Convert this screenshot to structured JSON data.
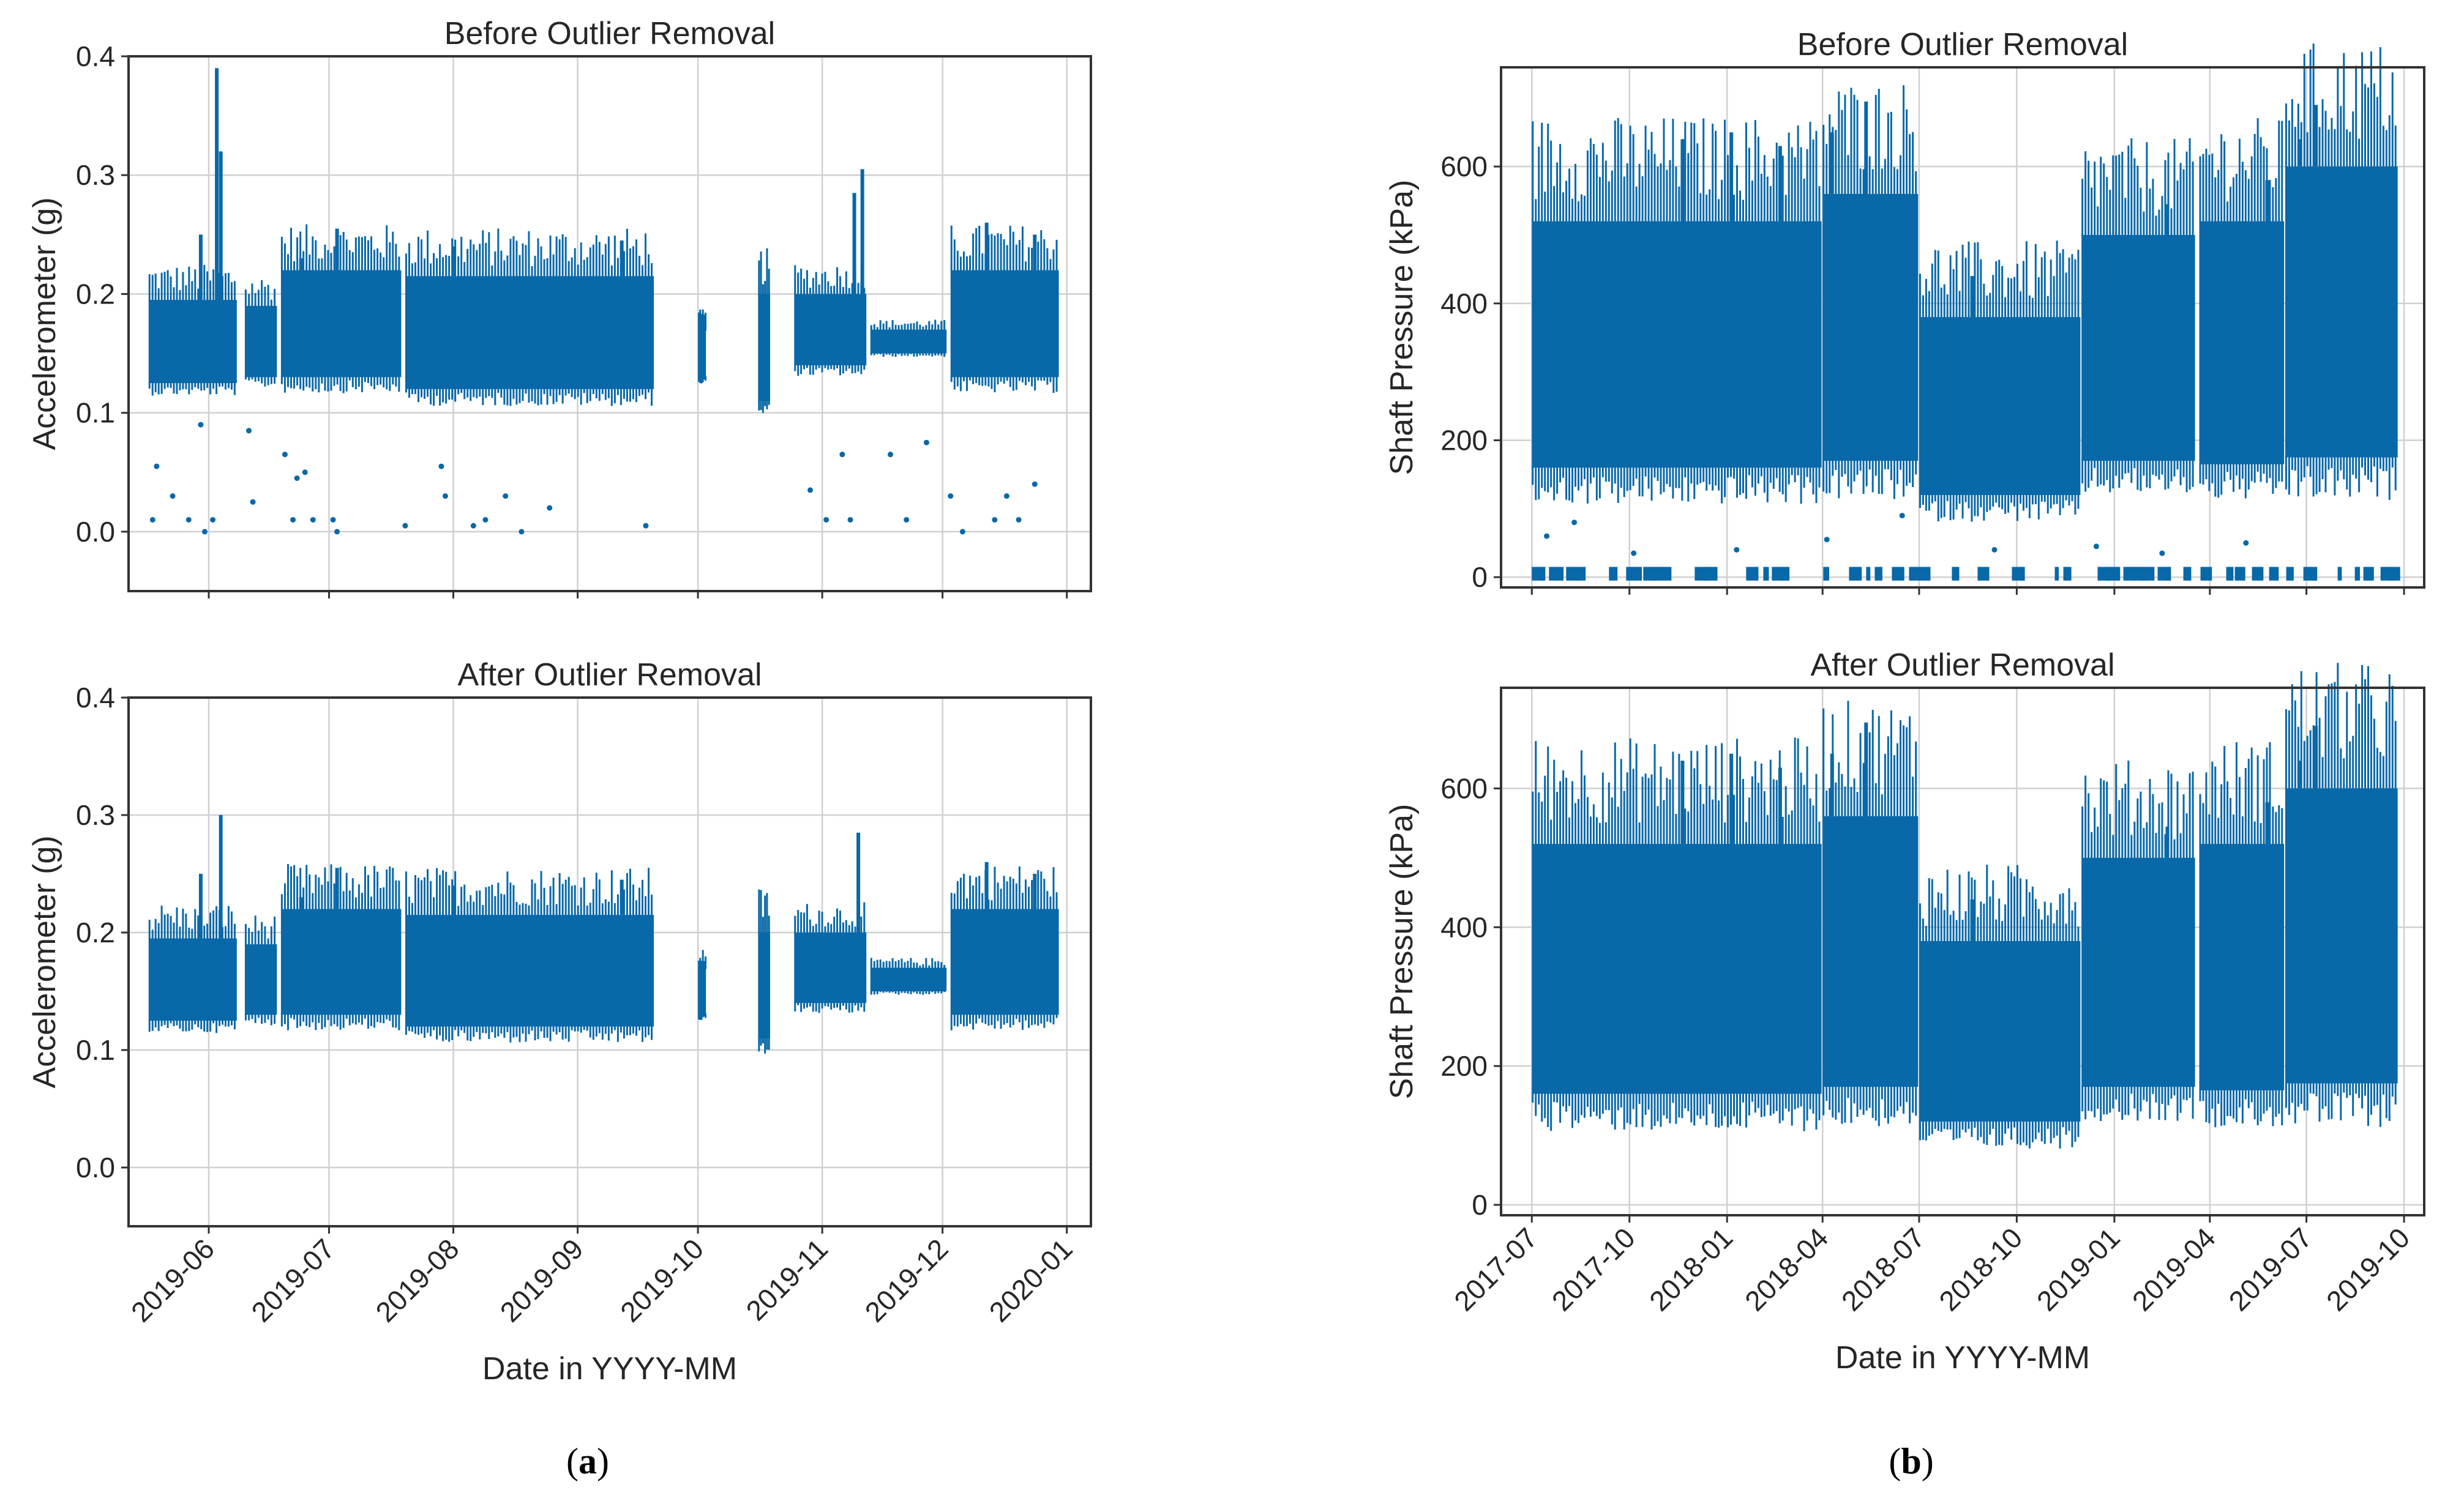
{
  "colors": {
    "marker": "#0868a8",
    "grid": "#d0d0d0",
    "frame": "#333333",
    "text": "#262626"
  },
  "captions": {
    "a": "a",
    "b": "b"
  },
  "chart_data": [
    {
      "id": "a_top",
      "type": "scatter",
      "title": "Before Outlier Removal",
      "xlabel": "",
      "ylabel": "Accelerometer (g)",
      "ylim": [
        -0.05,
        0.4
      ],
      "yticks": [
        "0.0",
        "0.1",
        "0.2",
        "0.3",
        "0.4"
      ],
      "ytick_values": [
        0.0,
        0.1,
        0.2,
        0.3,
        0.4
      ],
      "xlim": [
        "2019-05-12",
        "2020-01-07"
      ],
      "xticks": [
        "2019-06",
        "2019-07",
        "2019-08",
        "2019-09",
        "2019-10",
        "2019-11",
        "2019-12",
        "2020-01"
      ],
      "xtick_labels_shown": false,
      "segments": [
        {
          "start": "2019-05-17",
          "end": "2019-06-08",
          "low": 0.125,
          "high": 0.195,
          "spikes": [
            [
              "2019-06-03",
              0.39
            ],
            [
              "2019-06-04",
              0.32
            ],
            [
              "2019-05-30",
              0.25
            ]
          ]
        },
        {
          "start": "2019-06-10",
          "end": "2019-06-18",
          "low": 0.13,
          "high": 0.19
        },
        {
          "start": "2019-06-19",
          "end": "2019-07-19",
          "low": 0.13,
          "high": 0.22,
          "spikes": [
            [
              "2019-07-03",
              0.255
            ],
            [
              "2019-06-24",
              0.23
            ]
          ]
        },
        {
          "start": "2019-07-20",
          "end": "2019-09-20",
          "low": 0.12,
          "high": 0.215,
          "spikes": [
            [
              "2019-08-01",
              0.24
            ],
            [
              "2019-09-12",
              0.245
            ]
          ]
        },
        {
          "start": "2019-10-01",
          "end": "2019-10-03",
          "low": 0.13,
          "high": 0.17
        },
        {
          "start": "2019-10-16",
          "end": "2019-10-19",
          "low": 0.11,
          "high": 0.2
        },
        {
          "start": "2019-10-25",
          "end": "2019-11-12",
          "low": 0.14,
          "high": 0.2,
          "spikes": [
            [
              "2019-11-11",
              0.305
            ],
            [
              "2019-11-09",
              0.285
            ]
          ]
        },
        {
          "start": "2019-11-13",
          "end": "2019-12-02",
          "low": 0.15,
          "high": 0.17
        },
        {
          "start": "2019-12-03",
          "end": "2019-12-30",
          "low": 0.13,
          "high": 0.22,
          "spikes": [
            [
              "2019-12-12",
              0.26
            ],
            [
              "2019-12-24",
              0.25
            ]
          ]
        }
      ],
      "outliers": [
        [
          "2019-05-18",
          0.01
        ],
        [
          "2019-05-19",
          0.055
        ],
        [
          "2019-05-23",
          0.03
        ],
        [
          "2019-05-27",
          0.01
        ],
        [
          "2019-05-30",
          0.09
        ],
        [
          "2019-05-31",
          0.0
        ],
        [
          "2019-06-02",
          0.01
        ],
        [
          "2019-06-11",
          0.085
        ],
        [
          "2019-06-12",
          0.025
        ],
        [
          "2019-06-20",
          0.065
        ],
        [
          "2019-06-22",
          0.01
        ],
        [
          "2019-06-23",
          0.045
        ],
        [
          "2019-06-25",
          0.05
        ],
        [
          "2019-06-27",
          0.01
        ],
        [
          "2019-07-02",
          0.01
        ],
        [
          "2019-07-03",
          0.0
        ],
        [
          "2019-07-20",
          0.005
        ],
        [
          "2019-07-29",
          0.055
        ],
        [
          "2019-07-30",
          0.03
        ],
        [
          "2019-08-06",
          0.005
        ],
        [
          "2019-08-09",
          0.01
        ],
        [
          "2019-08-14",
          0.03
        ],
        [
          "2019-08-18",
          0.0
        ],
        [
          "2019-08-25",
          0.02
        ],
        [
          "2019-09-18",
          0.005
        ],
        [
          "2019-10-29",
          0.035
        ],
        [
          "2019-11-02",
          0.01
        ],
        [
          "2019-11-06",
          0.065
        ],
        [
          "2019-11-08",
          0.01
        ],
        [
          "2019-11-18",
          0.065
        ],
        [
          "2019-11-22",
          0.01
        ],
        [
          "2019-11-27",
          0.075
        ],
        [
          "2019-12-03",
          0.03
        ],
        [
          "2019-12-06",
          0.0
        ],
        [
          "2019-12-14",
          0.01
        ],
        [
          "2019-12-17",
          0.03
        ],
        [
          "2019-12-20",
          0.01
        ],
        [
          "2019-12-24",
          0.04
        ]
      ]
    },
    {
      "id": "a_bottom",
      "type": "scatter",
      "title": "After Outlier Removal",
      "xlabel": "Date in YYYY-MM",
      "ylabel": "Accelerometer (g)",
      "ylim": [
        -0.05,
        0.4
      ],
      "yticks": [
        "0.0",
        "0.1",
        "0.2",
        "0.3",
        "0.4"
      ],
      "ytick_values": [
        0.0,
        0.1,
        0.2,
        0.3,
        0.4
      ],
      "xlim": [
        "2019-05-12",
        "2020-01-07"
      ],
      "xticks": [
        "2019-06",
        "2019-07",
        "2019-08",
        "2019-09",
        "2019-10",
        "2019-11",
        "2019-12",
        "2020-01"
      ],
      "xtick_labels_shown": true,
      "segments": [
        {
          "start": "2019-05-17",
          "end": "2019-06-08",
          "low": 0.125,
          "high": 0.195,
          "spikes": [
            [
              "2019-06-04",
              0.3
            ],
            [
              "2019-05-30",
              0.25
            ]
          ]
        },
        {
          "start": "2019-06-10",
          "end": "2019-06-18",
          "low": 0.13,
          "high": 0.19
        },
        {
          "start": "2019-06-19",
          "end": "2019-07-19",
          "low": 0.13,
          "high": 0.22,
          "spikes": [
            [
              "2019-07-03",
              0.255
            ],
            [
              "2019-06-24",
              0.23
            ]
          ]
        },
        {
          "start": "2019-07-20",
          "end": "2019-09-20",
          "low": 0.12,
          "high": 0.215,
          "spikes": [
            [
              "2019-08-01",
              0.24
            ],
            [
              "2019-09-12",
              0.245
            ]
          ]
        },
        {
          "start": "2019-10-01",
          "end": "2019-10-03",
          "low": 0.13,
          "high": 0.17
        },
        {
          "start": "2019-10-16",
          "end": "2019-10-19",
          "low": 0.11,
          "high": 0.2
        },
        {
          "start": "2019-10-25",
          "end": "2019-11-12",
          "low": 0.14,
          "high": 0.2,
          "spikes": [
            [
              "2019-11-10",
              0.285
            ]
          ]
        },
        {
          "start": "2019-11-13",
          "end": "2019-12-02",
          "low": 0.15,
          "high": 0.17
        },
        {
          "start": "2019-12-03",
          "end": "2019-12-30",
          "low": 0.13,
          "high": 0.22,
          "spikes": [
            [
              "2019-12-12",
              0.26
            ],
            [
              "2019-12-24",
              0.25
            ]
          ]
        }
      ],
      "outliers": []
    },
    {
      "id": "b_top",
      "type": "scatter",
      "title": "Before Outlier Removal",
      "xlabel": "",
      "ylabel": "Shaft Pressure (kPa)",
      "ylim": [
        -15,
        745
      ],
      "yticks": [
        "0",
        "200",
        "400",
        "600"
      ],
      "ytick_values": [
        0,
        200,
        400,
        600
      ],
      "xlim": [
        "2017-06-02",
        "2019-10-20"
      ],
      "xticks": [
        "2017-07",
        "2017-10",
        "2018-01",
        "2018-04",
        "2018-07",
        "2018-10",
        "2019-01",
        "2019-04",
        "2019-07",
        "2019-10"
      ],
      "xtick_labels_shown": false,
      "segments": [
        {
          "start": "2017-07-01",
          "end": "2018-03-31",
          "low": 160,
          "high": 520,
          "spikes": [
            [
              "2017-11-20",
              640
            ],
            [
              "2018-01-05",
              650
            ],
            [
              "2018-02-20",
              630
            ]
          ]
        },
        {
          "start": "2018-04-01",
          "end": "2018-06-30",
          "low": 170,
          "high": 560,
          "spikes": [
            [
              "2018-05-12",
              695
            ],
            [
              "2018-04-10",
              650
            ]
          ]
        },
        {
          "start": "2018-07-01",
          "end": "2018-11-30",
          "low": 120,
          "high": 380,
          "spikes": [
            [
              "2018-08-20",
              440
            ]
          ]
        },
        {
          "start": "2018-12-01",
          "end": "2019-03-18",
          "low": 170,
          "high": 500,
          "spikes": [
            [
              "2019-02-20",
              545
            ]
          ]
        },
        {
          "start": "2019-03-22",
          "end": "2019-06-10",
          "low": 165,
          "high": 520,
          "spikes": [
            [
              "2019-05-25",
              580
            ]
          ]
        },
        {
          "start": "2019-06-11",
          "end": "2019-09-25",
          "low": 175,
          "high": 600,
          "spikes": [
            [
              "2019-06-25",
              640
            ],
            [
              "2019-07-10",
              690
            ]
          ]
        }
      ],
      "zero_band": {
        "start": "2017-07-01",
        "end": "2019-09-25",
        "low": -5,
        "high": 15
      },
      "outliers": [
        [
          "2017-07-15",
          60
        ],
        [
          "2017-08-10",
          80
        ],
        [
          "2017-10-05",
          35
        ],
        [
          "2018-01-10",
          40
        ],
        [
          "2018-04-05",
          55
        ],
        [
          "2018-06-15",
          90
        ],
        [
          "2018-09-10",
          40
        ],
        [
          "2018-12-15",
          45
        ],
        [
          "2019-02-15",
          35
        ],
        [
          "2019-05-05",
          50
        ]
      ]
    },
    {
      "id": "b_bottom",
      "type": "scatter",
      "title": "After Outlier Removal",
      "xlabel": "Date in YYYY-MM",
      "ylabel": "Shaft Pressure (kPa)",
      "ylim": [
        -15,
        745
      ],
      "yticks": [
        "0",
        "200",
        "400",
        "600"
      ],
      "ytick_values": [
        0,
        200,
        400,
        600
      ],
      "xlim": [
        "2017-06-02",
        "2019-10-20"
      ],
      "xticks": [
        "2017-07",
        "2017-10",
        "2018-01",
        "2018-04",
        "2018-07",
        "2018-10",
        "2019-01",
        "2019-04",
        "2019-07",
        "2019-10"
      ],
      "xtick_labels_shown": true,
      "segments": [
        {
          "start": "2017-07-01",
          "end": "2018-03-31",
          "low": 160,
          "high": 520,
          "spikes": [
            [
              "2017-11-20",
              640
            ],
            [
              "2018-01-05",
              650
            ],
            [
              "2018-02-20",
              630
            ]
          ]
        },
        {
          "start": "2018-04-01",
          "end": "2018-06-30",
          "low": 170,
          "high": 560,
          "spikes": [
            [
              "2018-05-12",
              695
            ],
            [
              "2018-04-10",
              650
            ]
          ]
        },
        {
          "start": "2018-07-01",
          "end": "2018-11-30",
          "low": 120,
          "high": 380,
          "spikes": [
            [
              "2018-08-20",
              440
            ]
          ]
        },
        {
          "start": "2018-12-01",
          "end": "2019-03-18",
          "low": 170,
          "high": 500,
          "spikes": [
            [
              "2019-02-20",
              545
            ]
          ]
        },
        {
          "start": "2019-03-22",
          "end": "2019-06-10",
          "low": 165,
          "high": 520,
          "spikes": [
            [
              "2019-05-25",
              580
            ]
          ]
        },
        {
          "start": "2019-06-11",
          "end": "2019-09-25",
          "low": 175,
          "high": 600,
          "spikes": [
            [
              "2019-06-25",
              640
            ],
            [
              "2019-07-10",
              690
            ]
          ]
        }
      ],
      "outliers": []
    }
  ]
}
